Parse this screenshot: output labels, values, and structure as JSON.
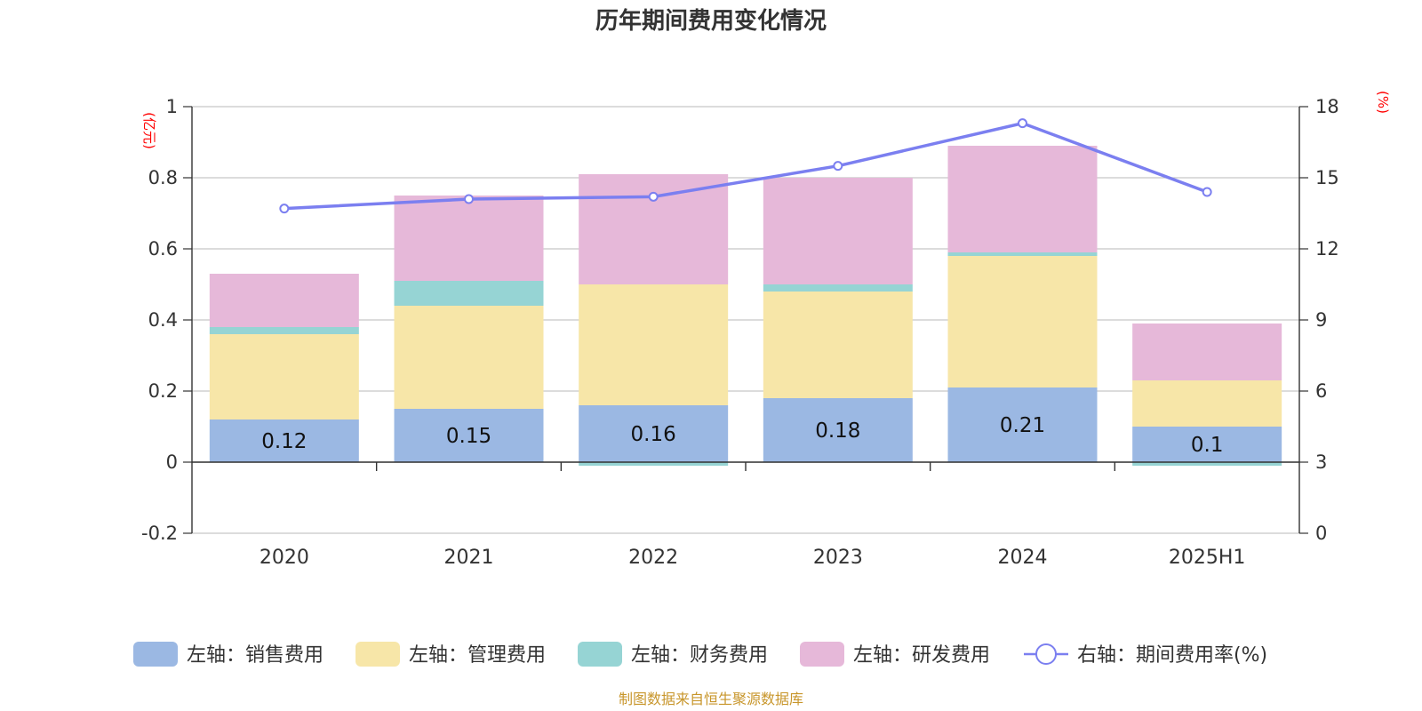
{
  "chart_data": {
    "type": "bar",
    "title": "历年期间费用变化情况",
    "left_axis_unit": "(亿元)",
    "right_axis_unit": "(%)",
    "categories": [
      "2020",
      "2021",
      "2022",
      "2023",
      "2024",
      "2025H1"
    ],
    "left_ylim": [
      -0.2,
      1
    ],
    "left_ticks": [
      "1",
      "0.8",
      "0.6",
      "0.4",
      "0.2",
      "0",
      "-0.2"
    ],
    "right_ylim": [
      0,
      18
    ],
    "right_ticks": [
      "18",
      "15",
      "12",
      "9",
      "6",
      "3",
      "0"
    ],
    "grid": true,
    "legend_position": "bottom",
    "stacked": true,
    "series": [
      {
        "name": "左轴：销售费用",
        "axis": "left",
        "type": "bar",
        "color": "#9bb8e3",
        "values": [
          0.12,
          0.15,
          0.16,
          0.18,
          0.21,
          0.1
        ],
        "labels": [
          "0.12",
          "0.15",
          "0.16",
          "0.18",
          "0.21",
          "0.1"
        ]
      },
      {
        "name": "左轴：管理费用",
        "axis": "left",
        "type": "bar",
        "color": "#f7e6a8",
        "values": [
          0.24,
          0.29,
          0.34,
          0.3,
          0.37,
          0.13
        ]
      },
      {
        "name": "左轴：财务费用",
        "axis": "left",
        "type": "bar",
        "color": "#96d4d4",
        "values": [
          0.02,
          0.07,
          -0.01,
          0.02,
          0.01,
          -0.01
        ]
      },
      {
        "name": "左轴：研发费用",
        "axis": "left",
        "type": "bar",
        "color": "#e6b8d9",
        "values": [
          0.15,
          0.24,
          0.31,
          0.3,
          0.3,
          0.16
        ]
      },
      {
        "name": "右轴：期间费用率(%)",
        "axis": "right",
        "type": "line",
        "color": "#7b7ff0",
        "values": [
          13.7,
          14.1,
          14.2,
          15.5,
          17.3,
          14.4
        ]
      }
    ]
  },
  "source_note": "制图数据来自恒生聚源数据库"
}
